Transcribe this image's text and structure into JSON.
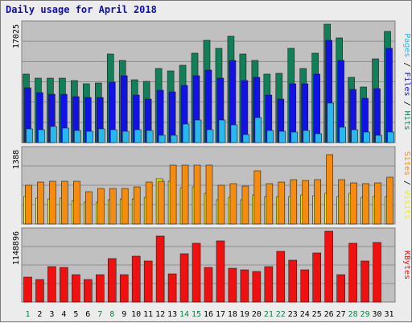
{
  "title": "Daily usage for April 2018",
  "chart_data": [
    {
      "type": "bar",
      "panel": "top",
      "title": "Daily usage for April 2018",
      "categories": [
        "1",
        "2",
        "3",
        "4",
        "5",
        "6",
        "7",
        "8",
        "9",
        "10",
        "11",
        "12",
        "13",
        "14",
        "15",
        "16",
        "17",
        "18",
        "19",
        "20",
        "21",
        "22",
        "23",
        "24",
        "25",
        "26",
        "27",
        "28",
        "29",
        "30",
        "31"
      ],
      "ymax_label": "17025",
      "ylim": [
        0,
        17025
      ],
      "series": [
        {
          "name": "Hits",
          "color": "#117f57",
          "values": [
            9800,
            9300,
            9300,
            9300,
            8900,
            8400,
            8600,
            12700,
            11800,
            9000,
            8800,
            10700,
            10300,
            11100,
            12900,
            14700,
            13500,
            15300,
            12700,
            11800,
            9800,
            10000,
            13500,
            10700,
            12800,
            17000,
            15100,
            9400,
            8000,
            12000,
            16000
          ]
        },
        {
          "name": "Files",
          "color": "#1212e6",
          "values": [
            7900,
            7200,
            7000,
            7000,
            6600,
            6500,
            6500,
            8700,
            9600,
            6800,
            6300,
            7500,
            7300,
            8200,
            9600,
            10400,
            9300,
            11800,
            8900,
            9400,
            6800,
            6300,
            8500,
            8400,
            9800,
            14700,
            11800,
            7700,
            6400,
            7800,
            13500
          ]
        },
        {
          "name": "Pages",
          "color": "#28b8f0",
          "values": [
            2000,
            1800,
            2300,
            2100,
            1700,
            1600,
            2000,
            1800,
            1600,
            1800,
            1700,
            1100,
            1100,
            2700,
            3200,
            1900,
            3300,
            2600,
            1200,
            3600,
            1700,
            1600,
            1500,
            1700,
            1300,
            5700,
            2200,
            1900,
            1500,
            1100,
            1500
          ]
        }
      ],
      "legend": [
        "Pages",
        "Files",
        "Hits"
      ]
    },
    {
      "type": "bar",
      "panel": "middle",
      "categories": [
        "1",
        "2",
        "3",
        "4",
        "5",
        "6",
        "7",
        "8",
        "9",
        "10",
        "11",
        "12",
        "13",
        "14",
        "15",
        "16",
        "17",
        "18",
        "19",
        "20",
        "21",
        "22",
        "23",
        "24",
        "25",
        "26",
        "27",
        "28",
        "29",
        "30",
        "31"
      ],
      "ymax_label": "1388",
      "ylim": [
        0,
        1388
      ],
      "series": [
        {
          "name": "Visits",
          "color": "#f0f000",
          "values": [
            520,
            480,
            470,
            480,
            430,
            400,
            400,
            450,
            470,
            470,
            500,
            840,
            800,
            680,
            700,
            570,
            460,
            500,
            450,
            550,
            510,
            520,
            520,
            540,
            530,
            570,
            510,
            570,
            500,
            510,
            520
          ]
        },
        {
          "name": "Sites",
          "color": "#f58c10",
          "values": [
            730,
            780,
            800,
            800,
            800,
            600,
            660,
            660,
            660,
            700,
            780,
            800,
            1100,
            1100,
            1100,
            1100,
            730,
            750,
            710,
            1000,
            760,
            790,
            830,
            820,
            830,
            1300,
            830,
            770,
            760,
            770,
            880
          ]
        }
      ],
      "legend": [
        "Sites",
        "Visits"
      ]
    },
    {
      "type": "bar",
      "panel": "bottom",
      "categories": [
        "1",
        "2",
        "3",
        "4",
        "5",
        "6",
        "7",
        "8",
        "9",
        "10",
        "11",
        "12",
        "13",
        "14",
        "15",
        "16",
        "17",
        "18",
        "19",
        "20",
        "21",
        "22",
        "23",
        "24",
        "25",
        "26",
        "27",
        "28",
        "29",
        "30",
        "31"
      ],
      "ymax_label": "1148896",
      "ylim": [
        0,
        1148896
      ],
      "series": [
        {
          "name": "KBytes",
          "color": "#f01010",
          "values": [
            410000,
            370000,
            580000,
            560000,
            450000,
            370000,
            440000,
            700000,
            450000,
            740000,
            660000,
            1070000,
            460000,
            780000,
            950000,
            560000,
            990000,
            550000,
            520000,
            500000,
            580000,
            820000,
            680000,
            520000,
            800000,
            1150000,
            450000,
            950000,
            660000,
            970000,
            1000
          ]
        }
      ],
      "legend": [
        "KBytes"
      ]
    }
  ]
}
